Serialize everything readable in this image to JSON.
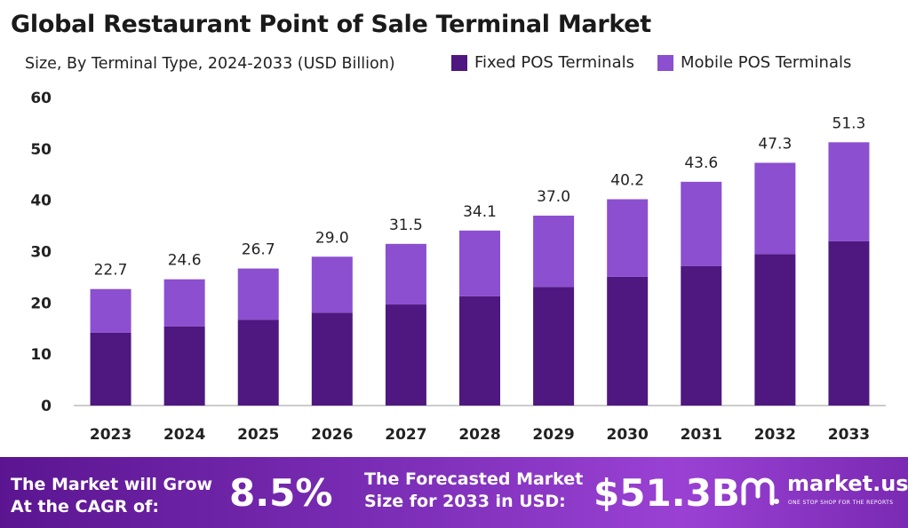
{
  "title": "Global Restaurant Point of Sale Terminal Market",
  "subtitle": "Size, By Terminal Type, 2024-2033 (USD Billion)",
  "colors": {
    "fixed": "#4e1880",
    "mobile": "#8b4fcf",
    "axis": "#bbbbbb",
    "text": "#222222"
  },
  "chart_data": {
    "type": "bar",
    "stacked": true,
    "categories": [
      "2023",
      "2024",
      "2025",
      "2026",
      "2027",
      "2028",
      "2029",
      "2030",
      "2031",
      "2032",
      "2033"
    ],
    "series": [
      {
        "name": "Fixed POS Terminals",
        "values": [
          14.2,
          15.4,
          16.7,
          18.1,
          19.7,
          21.3,
          23.1,
          25.1,
          27.2,
          29.5,
          32.0
        ]
      },
      {
        "name": "Mobile POS Terminals",
        "values": [
          8.5,
          9.2,
          10.0,
          10.9,
          11.8,
          12.8,
          13.9,
          15.1,
          16.4,
          17.8,
          19.3
        ]
      }
    ],
    "totals": [
      "22.7",
      "24.6",
      "26.7",
      "29.0",
      "31.5",
      "34.1",
      "37.0",
      "40.2",
      "43.6",
      "47.3",
      "51.3"
    ],
    "yticks": [
      0,
      10,
      20,
      30,
      40,
      50,
      60
    ],
    "ylim": [
      0,
      60
    ],
    "grid": false,
    "legend_position": "top-right"
  },
  "banner": {
    "cagr_label_1": "The Market will Grow",
    "cagr_label_2": "At the CAGR of:",
    "cagr_value": "8.5%",
    "forecast_label_1": "The Forecasted Market",
    "forecast_label_2": "Size for 2033 in USD:",
    "forecast_value": "$51.3B",
    "logo_name": "market.us",
    "logo_tagline": "ONE STOP SHOP FOR THE REPORTS"
  }
}
